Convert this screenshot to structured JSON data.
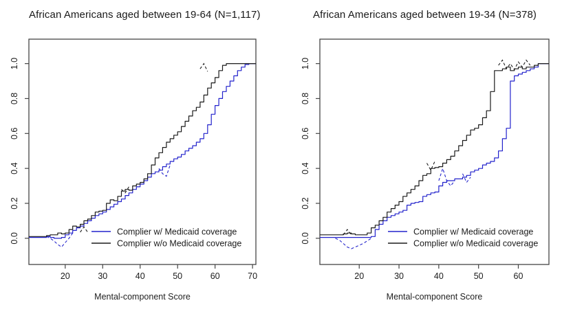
{
  "figure": {
    "background": "#ffffff",
    "axis_color": "#444444",
    "text_color": "#1a1a1a"
  },
  "chart_data": [
    {
      "type": "line",
      "subtype": "empirical-cdf-step",
      "title": "African Americans aged between 19-64 (N=1,117)",
      "xlabel": "Mental-component Score",
      "ylabel": "",
      "xlim": [
        10.3,
        70.9
      ],
      "ylim": [
        -0.15,
        1.14
      ],
      "xticks": [
        20,
        30,
        40,
        50,
        60,
        70
      ],
      "yticks": [
        "0.0",
        "0.2",
        "0.4",
        "0.6",
        "0.8",
        "1.0"
      ],
      "grid": false,
      "legend_position": "inside-bottom-center",
      "legend": {
        "line_x": 133,
        "row_y": [
          337,
          354
        ]
      },
      "series": [
        {
          "name": "Complier w/ Medicaid coverage",
          "color": "#2222cc",
          "x_start": 13,
          "x_step": 1,
          "y": [
            0.005,
            0.005,
            0.01,
            0.005,
            0.0,
            0.0,
            0.005,
            0.02,
            0.03,
            0.045,
            0.06,
            0.07,
            0.085,
            0.1,
            0.115,
            0.13,
            0.14,
            0.15,
            0.165,
            0.18,
            0.195,
            0.21,
            0.225,
            0.245,
            0.26,
            0.28,
            0.295,
            0.31,
            0.33,
            0.35,
            0.37,
            0.38,
            0.39,
            0.41,
            0.425,
            0.44,
            0.455,
            0.465,
            0.48,
            0.5,
            0.515,
            0.53,
            0.55,
            0.57,
            0.6,
            0.65,
            0.71,
            0.76,
            0.8,
            0.84,
            0.87,
            0.9,
            0.93,
            0.96,
            0.98,
            0.995,
            1.0
          ],
          "dashed_segments": [
            [
              [
                15,
                0.01
              ],
              [
                16,
                0.0
              ],
              [
                17,
                -0.015
              ],
              [
                18,
                -0.035
              ],
              [
                19,
                -0.05
              ],
              [
                20,
                -0.025
              ],
              [
                21,
                0.0
              ],
              [
                22,
                0.03
              ]
            ],
            [
              [
                45,
                0.4
              ],
              [
                46,
                0.37
              ],
              [
                47,
                0.355
              ],
              [
                48,
                0.42
              ]
            ]
          ]
        },
        {
          "name": "Complier w/o Medicaid coverage",
          "color": "#1a1a1a",
          "x_start": 13,
          "x_step": 1,
          "y": [
            0.01,
            0.01,
            0.015,
            0.02,
            0.02,
            0.03,
            0.025,
            0.03,
            0.05,
            0.07,
            0.065,
            0.08,
            0.1,
            0.11,
            0.13,
            0.15,
            0.155,
            0.16,
            0.2,
            0.22,
            0.215,
            0.24,
            0.27,
            0.28,
            0.275,
            0.3,
            0.31,
            0.32,
            0.34,
            0.37,
            0.42,
            0.46,
            0.49,
            0.52,
            0.55,
            0.57,
            0.59,
            0.61,
            0.64,
            0.67,
            0.7,
            0.73,
            0.75,
            0.78,
            0.82,
            0.86,
            0.89,
            0.92,
            0.96,
            0.99,
            1.0,
            1.0,
            1.0,
            1.0,
            1.0,
            1.0,
            1.0
          ],
          "dashed_segments": [
            [
              [
                24,
                0.035
              ],
              [
                25,
                0.065
              ],
              [
                26,
                0.035
              ]
            ],
            [
              [
                35,
                0.28
              ],
              [
                36,
                0.26
              ],
              [
                37,
                0.295
              ]
            ],
            [
              [
                56,
                0.97
              ],
              [
                57,
                1.0
              ],
              [
                58,
                0.955
              ]
            ]
          ]
        }
      ]
    },
    {
      "type": "line",
      "subtype": "empirical-cdf-step",
      "title": "African Americans aged between 19-34 (N=378)",
      "xlabel": "Mental-component Score",
      "ylabel": "",
      "xlim": [
        10.1,
        67.7
      ],
      "ylim": [
        -0.15,
        1.14
      ],
      "xticks": [
        20,
        30,
        40,
        50,
        60
      ],
      "yticks": [
        "0.0",
        "0.2",
        "0.4",
        "0.6",
        "0.8",
        "1.0"
      ],
      "grid": false,
      "legend_position": "inside-bottom-center",
      "legend": {
        "line_x": 155,
        "row_y": [
          337,
          354
        ]
      },
      "series": [
        {
          "name": "Complier w/ Medicaid coverage",
          "color": "#2222cc",
          "x_start": 13,
          "x_step": 1,
          "y": [
            0.005,
            0.005,
            0.005,
            0.005,
            0.005,
            0.005,
            0.005,
            0.005,
            0.005,
            0.005,
            0.01,
            0.05,
            0.08,
            0.1,
            0.12,
            0.13,
            0.14,
            0.15,
            0.16,
            0.19,
            0.2,
            0.205,
            0.21,
            0.24,
            0.25,
            0.26,
            0.265,
            0.3,
            0.32,
            0.33,
            0.33,
            0.34,
            0.34,
            0.35,
            0.36,
            0.38,
            0.39,
            0.4,
            0.42,
            0.43,
            0.44,
            0.46,
            0.5,
            0.57,
            0.63,
            0.9,
            0.93,
            0.94,
            0.95,
            0.96,
            0.97,
            0.98,
            1.0
          ],
          "dashed_segments": [
            [
              [
                14,
                0.0
              ],
              [
                15,
                -0.01
              ],
              [
                16,
                -0.03
              ],
              [
                17,
                -0.05
              ],
              [
                18,
                -0.06
              ],
              [
                19,
                -0.05
              ],
              [
                20,
                -0.04
              ],
              [
                21,
                -0.03
              ],
              [
                22,
                -0.015
              ],
              [
                23,
                0.0
              ]
            ],
            [
              [
                40,
                0.33
              ],
              [
                41,
                0.4
              ],
              [
                42,
                0.33
              ],
              [
                43,
                0.3
              ],
              [
                44,
                0.33
              ]
            ],
            [
              [
                46,
                0.37
              ],
              [
                47,
                0.32
              ],
              [
                48,
                0.35
              ]
            ]
          ]
        },
        {
          "name": "Complier w/o Medicaid coverage",
          "color": "#1a1a1a",
          "x_start": 13,
          "x_step": 1,
          "y": [
            0.02,
            0.02,
            0.02,
            0.025,
            0.03,
            0.025,
            0.02,
            0.02,
            0.02,
            0.03,
            0.06,
            0.075,
            0.1,
            0.12,
            0.15,
            0.17,
            0.19,
            0.21,
            0.24,
            0.26,
            0.28,
            0.3,
            0.33,
            0.36,
            0.37,
            0.4,
            0.405,
            0.41,
            0.43,
            0.45,
            0.47,
            0.5,
            0.53,
            0.56,
            0.59,
            0.62,
            0.63,
            0.65,
            0.69,
            0.73,
            0.84,
            0.96,
            0.96,
            0.97,
            0.98,
            0.96,
            0.97,
            0.98,
            0.97,
            0.98,
            0.98,
            0.99,
            1.0
          ],
          "dashed_segments": [
            [
              [
                16,
                0.02
              ],
              [
                17,
                0.05
              ],
              [
                18,
                0.02
              ]
            ],
            [
              [
                37,
                0.43
              ],
              [
                38,
                0.39
              ],
              [
                39,
                0.44
              ]
            ],
            [
              [
                55,
                0.99
              ],
              [
                56,
                1.02
              ],
              [
                57,
                0.97
              ],
              [
                58,
                1.0
              ],
              [
                59,
                0.965
              ],
              [
                60,
                1.01
              ],
              [
                61,
                0.98
              ],
              [
                62,
                1.02
              ],
              [
                63,
                0.99
              ]
            ]
          ]
        }
      ]
    }
  ]
}
